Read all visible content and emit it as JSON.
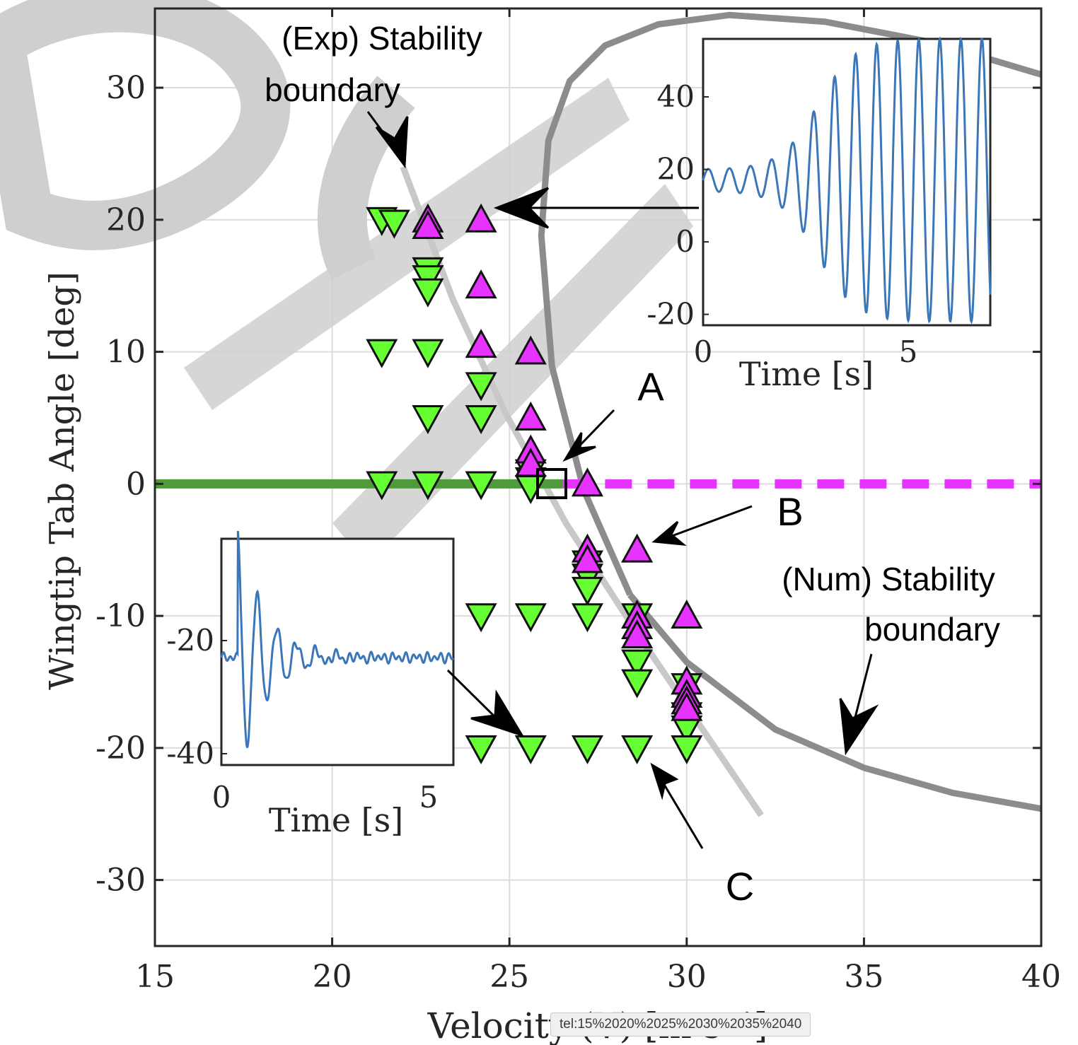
{
  "chart_data": {
    "type": "scatter",
    "xlabel": "Velocity (V) [m s⁻¹]",
    "ylabel": "Wingtip Tab Angle [deg]",
    "xlim": [
      15,
      40
    ],
    "ylim": [
      -35,
      36
    ],
    "xticks": [
      "15",
      "20",
      "25",
      "30",
      "35",
      "40"
    ],
    "yticks": [
      "-30",
      "-20",
      "-10",
      "0",
      "10",
      "20",
      "30"
    ],
    "grid": true,
    "colors": {
      "stable": "#66ff33",
      "unstable": "#e633ff",
      "stable_line": "#4f9a3a",
      "num_boundary": "#8c8c8c",
      "exp_boundary": "#c8c8c8",
      "time_trace": "#3a76b8"
    },
    "series": [
      {
        "marker": "triangle-down",
        "color": "#66ff33",
        "points": [
          [
            21.4,
            20
          ],
          [
            21.75,
            19.8
          ],
          [
            22.7,
            16.2
          ],
          [
            22.7,
            15.6
          ],
          [
            22.7,
            14.6
          ],
          [
            21.4,
            10
          ],
          [
            22.7,
            10
          ],
          [
            24.2,
            7.5
          ],
          [
            22.7,
            5
          ],
          [
            24.2,
            5
          ],
          [
            21.4,
            0
          ],
          [
            22.7,
            0
          ],
          [
            24.2,
            0
          ],
          [
            25.6,
            0.9
          ],
          [
            25.6,
            0.3
          ],
          [
            25.6,
            -0.3
          ],
          [
            27.2,
            -6
          ],
          [
            27.2,
            -7
          ],
          [
            27.2,
            -8
          ],
          [
            22.7,
            -10
          ],
          [
            24.2,
            -10
          ],
          [
            25.6,
            -10
          ],
          [
            27.2,
            -10
          ],
          [
            28.6,
            -10
          ],
          [
            28.6,
            -13.5
          ],
          [
            28.6,
            -15
          ],
          [
            30,
            -15.3
          ],
          [
            30,
            -17.5
          ],
          [
            30,
            -18.5
          ],
          [
            24.2,
            -20
          ],
          [
            25.6,
            -20
          ],
          [
            27.2,
            -20
          ],
          [
            28.6,
            -20
          ],
          [
            30,
            -20
          ]
        ]
      },
      {
        "marker": "triangle-up",
        "color": "#e633ff",
        "points": [
          [
            22.7,
            20
          ],
          [
            22.7,
            19.5
          ],
          [
            24.2,
            20
          ],
          [
            24.2,
            15
          ],
          [
            24.2,
            10.5
          ],
          [
            25.6,
            10
          ],
          [
            25.6,
            5
          ],
          [
            25.6,
            2.5
          ],
          [
            25.6,
            1.5
          ],
          [
            27.2,
            0
          ],
          [
            27.2,
            -5
          ],
          [
            27.2,
            -5.8
          ],
          [
            28.6,
            -5
          ],
          [
            28.6,
            -10
          ],
          [
            28.6,
            -10.8
          ],
          [
            28.6,
            -11.5
          ],
          [
            30,
            -10
          ],
          [
            30,
            -15
          ],
          [
            30,
            -16
          ],
          [
            30,
            -16.5
          ],
          [
            30,
            -17
          ]
        ]
      }
    ],
    "stable_line": {
      "x": [
        15,
        26.5
      ],
      "y": 0
    },
    "unstable_line": {
      "x": [
        26.5,
        40
      ],
      "y": 0
    },
    "num_boundary": {
      "x": [
        28.4,
        27.1,
        26.2,
        25.9,
        26.1,
        26.7,
        27.7,
        29.2,
        31.2,
        33.9,
        37.0,
        40.0
      ],
      "y": [
        -8.4,
        -0.5,
        8.9,
        18.8,
        26.0,
        30.5,
        33.2,
        34.8,
        35.5,
        35.0,
        33.4,
        31.0
      ]
    },
    "num_boundary_lower": {
      "x": [
        28.4,
        30.0,
        32.5,
        35.0,
        37.5,
        40.0
      ],
      "y": [
        -8.4,
        -13.5,
        -18.6,
        -21.5,
        -23.4,
        -24.6
      ]
    },
    "exp_boundary": {
      "x": [
        22.0,
        23.4,
        24.9,
        26.6,
        28.7,
        32.1
      ],
      "y": [
        24.0,
        14.0,
        5.3,
        -3.0,
        -11.7,
        -25.1
      ]
    },
    "annotations": [
      {
        "label": "(Exp) Stability",
        "label2": "boundary"
      },
      {
        "label": "(Num) Stability",
        "label2": "boundary"
      },
      {
        "label": "A"
      },
      {
        "label": "B"
      },
      {
        "label": "C"
      }
    ],
    "insets": [
      {
        "xlabel": "Time [s]",
        "xticks": [
          "0",
          "5"
        ],
        "yticks": [
          "40",
          "20",
          "0",
          "-20"
        ],
        "xlim": [
          0,
          7
        ],
        "ylim": [
          -23,
          56
        ]
      },
      {
        "xlabel": "Time [s]",
        "xticks": [
          "0",
          "5"
        ],
        "yticks": [
          "-20",
          "-40"
        ],
        "xlim": [
          0,
          5.6
        ],
        "ylim": [
          -42,
          -2
        ]
      }
    ]
  },
  "status_bar": {
    "text": "tel:15%2020%2025%2030%2035%2040"
  }
}
